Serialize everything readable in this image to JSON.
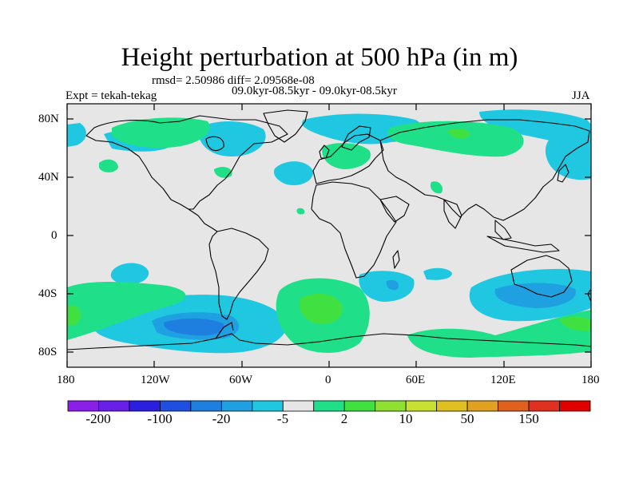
{
  "title": "Height perturbation at 500 hPa (in m)",
  "stats": "rmsd= 2.50986 diff= 2.09568e-08",
  "experiment": "Expt = tekah-tekag",
  "comparison": "09.0kyr-08.5kyr - 09.0kyr-08.5kyr",
  "season": "JJA",
  "x_ticks": [
    "180",
    "120W",
    "60W",
    "0",
    "60E",
    "120E",
    "180"
  ],
  "y_ticks": [
    "80N",
    "40N",
    "0",
    "40S",
    "80S"
  ],
  "colorbar": {
    "colors": [
      "#8a1fe8",
      "#6a1fe8",
      "#2a1fe0",
      "#1f4fe0",
      "#1f7fe0",
      "#1fa0e0",
      "#1fc8e0",
      "#e6e6e6",
      "#1fe089",
      "#3fe040",
      "#8fe030",
      "#c8e030",
      "#e0c020",
      "#e0a020",
      "#e06020",
      "#e03020",
      "#e00000"
    ],
    "labels": [
      "-200",
      "-100",
      "-20",
      "-5",
      "2",
      "10",
      "50",
      "150"
    ]
  },
  "map": {
    "ocean_color": "#e6e6e6",
    "anomaly_regions": [
      {
        "lon": -105,
        "lat": -55,
        "kind": "negative",
        "color": "#1fc8e0"
      },
      {
        "lon": -90,
        "lat": -62,
        "kind": "negative",
        "color": "#1fa0e0"
      },
      {
        "lon": 95,
        "lat": -48,
        "kind": "negative",
        "color": "#1fc8e0"
      },
      {
        "lon": 165,
        "lat": 65,
        "kind": "negative",
        "color": "#1fc8e0"
      },
      {
        "lon": -5,
        "lat": -50,
        "kind": "positive",
        "color": "#1fe089"
      },
      {
        "lon": -160,
        "lat": -58,
        "kind": "positive",
        "color": "#1fe089"
      },
      {
        "lon": 20,
        "lat": 65,
        "kind": "positive",
        "color": "#1fe089"
      }
    ]
  }
}
